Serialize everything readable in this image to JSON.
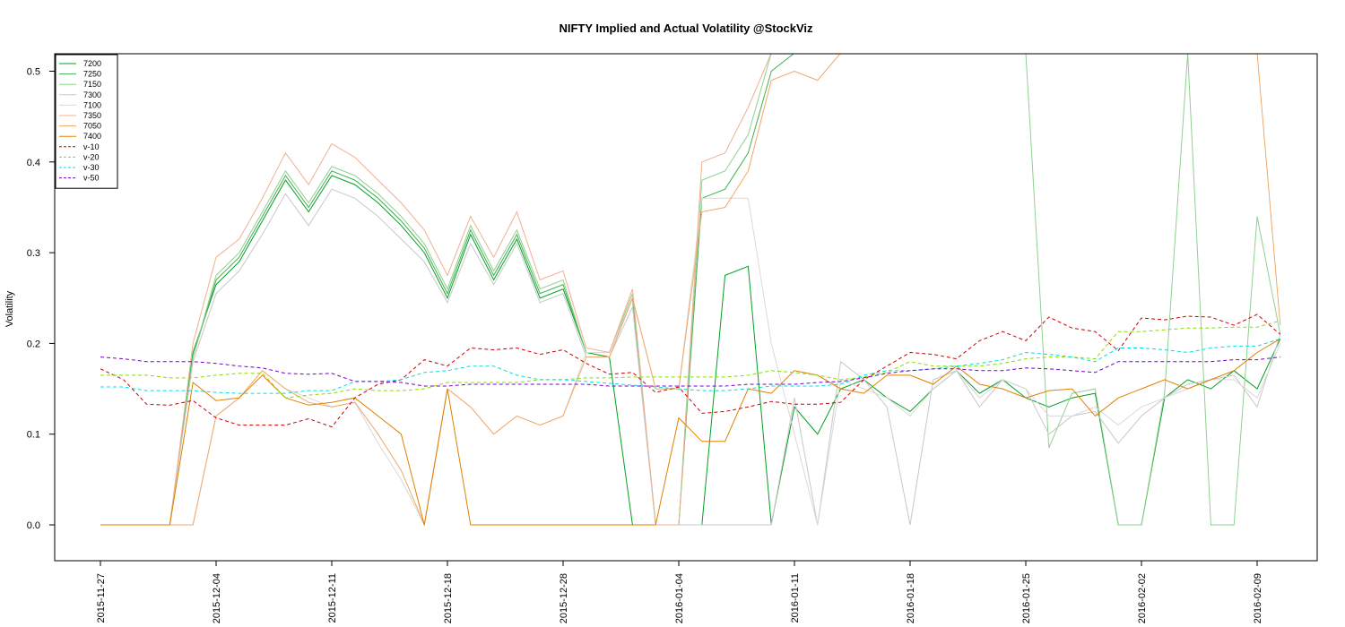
{
  "chart_data": {
    "type": "line",
    "title": "NIFTY Implied and Actual Volatility @StockViz",
    "xlabel": "",
    "ylabel": "Volatility",
    "ylim": [
      -0.04,
      0.52
    ],
    "yticks": [
      "0.0",
      "0.1",
      "0.2",
      "0.3",
      "0.4",
      "0.5"
    ],
    "xticks": [
      "2015-11-27",
      "2015-12-04",
      "2015-12-11",
      "2015-12-18",
      "2015-12-28",
      "2016-01-04",
      "2016-01-11",
      "2016-01-18",
      "2016-01-25",
      "2016-02-02",
      "2016-02-09"
    ],
    "xtick_index": [
      0,
      5,
      10,
      15,
      20,
      25,
      30,
      35,
      40,
      45,
      50
    ],
    "n_points": 52,
    "grid": false,
    "legend_position": "top-left",
    "series": [
      {
        "name": "7200",
        "color": "#00a020",
        "dash": "solid",
        "values": [
          0,
          0,
          0,
          0,
          0.19,
          0.265,
          0.29,
          0.335,
          0.38,
          0.345,
          0.385,
          0.375,
          0.355,
          0.33,
          0.3,
          0.25,
          0.32,
          0.27,
          0.315,
          0.25,
          0.26,
          0.19,
          0.185,
          0,
          0,
          0,
          0,
          0.275,
          0.285,
          0.001,
          0.13,
          0.1,
          0.15,
          0.16,
          0.14,
          0.125,
          0.15,
          0.17,
          0.145,
          0.16,
          0.14,
          0.13,
          0.14,
          0.145,
          0,
          0,
          0.14,
          0.16,
          0.15,
          0.17,
          0.15,
          0.205
        ]
      },
      {
        "name": "7250",
        "color": "#40b050",
        "dash": "solid",
        "values": [
          0,
          0,
          0,
          0,
          0.185,
          0.27,
          0.295,
          0.34,
          0.385,
          0.35,
          0.39,
          0.38,
          0.36,
          0.335,
          0.305,
          0.255,
          0.325,
          0.275,
          0.32,
          0.255,
          0.265,
          0.19,
          0.19,
          0.25,
          0,
          0,
          0.36,
          0.37,
          0.41,
          0.5,
          0.52,
          0.52,
          0.52,
          0.52,
          0.52,
          0.52,
          0.52,
          0.52,
          0.52,
          0.52,
          0.52,
          0.52,
          0.52,
          0.52,
          0.52,
          0.52,
          0.52,
          0.52,
          0.52,
          0.52,
          0.52,
          0.52
        ]
      },
      {
        "name": "7150",
        "color": "#8fd08f",
        "dash": "solid",
        "values": [
          0,
          0,
          0,
          0,
          0.185,
          0.275,
          0.3,
          0.345,
          0.39,
          0.355,
          0.395,
          0.385,
          0.365,
          0.34,
          0.31,
          0.26,
          0.33,
          0.28,
          0.325,
          0.26,
          0.27,
          0.19,
          0.19,
          0.255,
          0,
          0,
          0.38,
          0.39,
          0.43,
          0.52,
          0.52,
          0.52,
          0.52,
          0.52,
          0.52,
          0.52,
          0.52,
          0.52,
          0.52,
          0.52,
          0.52,
          0.085,
          0.145,
          0.15,
          0,
          0,
          0.145,
          0.52,
          0,
          0,
          0.34,
          0.21
        ]
      },
      {
        "name": "7300",
        "color": "#c8c8c8",
        "dash": "solid",
        "values": [
          0,
          0,
          0,
          0,
          0.18,
          0.255,
          0.28,
          0.32,
          0.365,
          0.33,
          0.37,
          0.36,
          0.34,
          0.315,
          0.29,
          0.245,
          0.31,
          0.265,
          0.31,
          0.245,
          0.255,
          0.185,
          0.185,
          0.24,
          0,
          0,
          0,
          0,
          0,
          0,
          0.14,
          0,
          0.18,
          0.16,
          0.13,
          0,
          0.16,
          0.17,
          0.13,
          0.16,
          0.15,
          0.1,
          0.12,
          0.125,
          0.09,
          0.12,
          0.14,
          0.155,
          0.16,
          0.165,
          0.13,
          0.21
        ]
      },
      {
        "name": "7100",
        "color": "#d9d9d9",
        "dash": "solid",
        "values": [
          0,
          0,
          0,
          0,
          0,
          0.12,
          0.14,
          0.17,
          0.15,
          0.14,
          0.13,
          0.135,
          0.09,
          0.05,
          0,
          0.15,
          0.13,
          0.1,
          0.12,
          0.11,
          0.12,
          0.19,
          0.19,
          0.25,
          0.15,
          0.15,
          0.36,
          0.36,
          0.36,
          0.2,
          0.1,
          0,
          0.16,
          0.15,
          0.14,
          0.12,
          0.15,
          0.17,
          0.14,
          0.16,
          0.15,
          0.12,
          0.12,
          0.13,
          0.11,
          0.13,
          0.14,
          0.15,
          0.16,
          0.16,
          0.14,
          0.2
        ]
      },
      {
        "name": "7350",
        "color": "#f0b090",
        "dash": "solid",
        "values": [
          0,
          0,
          0,
          0,
          0.2,
          0.295,
          0.315,
          0.36,
          0.41,
          0.375,
          0.42,
          0.405,
          0.38,
          0.355,
          0.325,
          0.275,
          0.34,
          0.295,
          0.345,
          0.27,
          0.28,
          0.195,
          0.19,
          0.26,
          0,
          0,
          0.4,
          0.41,
          0.46,
          0.52,
          0.52,
          0.52,
          0.52,
          0.52,
          0.52,
          0.52,
          0.52,
          0.52,
          0.52,
          0.52,
          0.52,
          0.52,
          0.52,
          0.52,
          0.52,
          0.52,
          0.52,
          0.52,
          0.52,
          0.52,
          0.52,
          0.52
        ]
      },
      {
        "name": "7050",
        "color": "#f0a868",
        "dash": "solid",
        "values": [
          0,
          0,
          0,
          0,
          0,
          0.12,
          0.14,
          0.17,
          0.15,
          0.135,
          0.13,
          0.135,
          0.1,
          0.06,
          0,
          0.15,
          0.13,
          0.1,
          0.12,
          0.11,
          0.12,
          0.185,
          0.185,
          0.25,
          0.15,
          0.15,
          0.345,
          0.35,
          0.39,
          0.49,
          0.5,
          0.49,
          0.52,
          0.52,
          0.52,
          0.52,
          0.52,
          0.52,
          0.52,
          0.52,
          0.52,
          0.52,
          0.52,
          0.52,
          0.52,
          0.52,
          0.52,
          0.52,
          0.52,
          0.52,
          0.52,
          0.22
        ]
      },
      {
        "name": "7400",
        "color": "#e08000",
        "dash": "solid",
        "values": [
          0,
          0,
          0,
          0,
          0.157,
          0.137,
          0.14,
          0.165,
          0.14,
          0.132,
          0.135,
          0.14,
          0.12,
          0.1,
          0,
          0.15,
          0,
          0,
          0,
          0,
          0,
          0,
          0,
          0,
          0,
          0.118,
          0.092,
          0.092,
          0.15,
          0.145,
          0.17,
          0.165,
          0.15,
          0.145,
          0.165,
          0.165,
          0.155,
          0.175,
          0.155,
          0.15,
          0.14,
          0.148,
          0.15,
          0.12,
          0.14,
          0.15,
          0.16,
          0.15,
          0.16,
          0.17,
          0.19,
          0.205
        ]
      },
      {
        "name": "v-10",
        "color": "#cc0000",
        "dash": "4,3",
        "values": [
          0.172,
          0.16,
          0.133,
          0.132,
          0.137,
          0.118,
          0.11,
          0.11,
          0.11,
          0.117,
          0.108,
          0.14,
          0.155,
          0.16,
          0.182,
          0.175,
          0.195,
          0.193,
          0.195,
          0.188,
          0.193,
          0.178,
          0.166,
          0.168,
          0.146,
          0.152,
          0.123,
          0.125,
          0.13,
          0.136,
          0.133,
          0.133,
          0.135,
          0.16,
          0.175,
          0.19,
          0.188,
          0.183,
          0.203,
          0.213,
          0.203,
          0.229,
          0.217,
          0.213,
          0.192,
          0.228,
          0.226,
          0.23,
          0.229,
          0.22,
          0.232,
          0.21
        ]
      },
      {
        "name": "v-20",
        "color": "#88dd00",
        "dash": "4,3",
        "values": [
          0.165,
          0.165,
          0.165,
          0.162,
          0.162,
          0.165,
          0.167,
          0.167,
          0.14,
          0.143,
          0.145,
          0.15,
          0.148,
          0.148,
          0.15,
          0.157,
          0.157,
          0.157,
          0.157,
          0.16,
          0.16,
          0.162,
          0.162,
          0.163,
          0.163,
          0.163,
          0.163,
          0.163,
          0.165,
          0.17,
          0.168,
          0.165,
          0.16,
          0.163,
          0.168,
          0.18,
          0.175,
          0.175,
          0.175,
          0.178,
          0.183,
          0.185,
          0.185,
          0.183,
          0.213,
          0.213,
          0.215,
          0.217,
          0.217,
          0.218,
          0.218,
          0.225
        ]
      },
      {
        "name": "v-30",
        "color": "#00e0e0",
        "dash": "4,3",
        "values": [
          0.152,
          0.152,
          0.148,
          0.148,
          0.148,
          0.146,
          0.145,
          0.145,
          0.145,
          0.148,
          0.148,
          0.158,
          0.158,
          0.16,
          0.168,
          0.17,
          0.175,
          0.175,
          0.165,
          0.16,
          0.16,
          0.158,
          0.156,
          0.154,
          0.152,
          0.15,
          0.148,
          0.148,
          0.15,
          0.153,
          0.153,
          0.153,
          0.155,
          0.165,
          0.17,
          0.17,
          0.172,
          0.175,
          0.178,
          0.182,
          0.19,
          0.188,
          0.185,
          0.18,
          0.195,
          0.195,
          0.193,
          0.19,
          0.195,
          0.197,
          0.197,
          0.205
        ]
      },
      {
        "name": "v-50",
        "color": "#7700cc",
        "dash": "4,3",
        "values": [
          0.185,
          0.183,
          0.18,
          0.18,
          0.18,
          0.178,
          0.175,
          0.173,
          0.167,
          0.166,
          0.167,
          0.158,
          0.158,
          0.157,
          0.153,
          0.153,
          0.155,
          0.155,
          0.155,
          0.155,
          0.155,
          0.155,
          0.153,
          0.153,
          0.153,
          0.153,
          0.153,
          0.153,
          0.155,
          0.155,
          0.155,
          0.157,
          0.158,
          0.162,
          0.167,
          0.17,
          0.172,
          0.172,
          0.17,
          0.17,
          0.173,
          0.172,
          0.17,
          0.168,
          0.18,
          0.18,
          0.18,
          0.18,
          0.18,
          0.182,
          0.182,
          0.185
        ]
      }
    ]
  }
}
